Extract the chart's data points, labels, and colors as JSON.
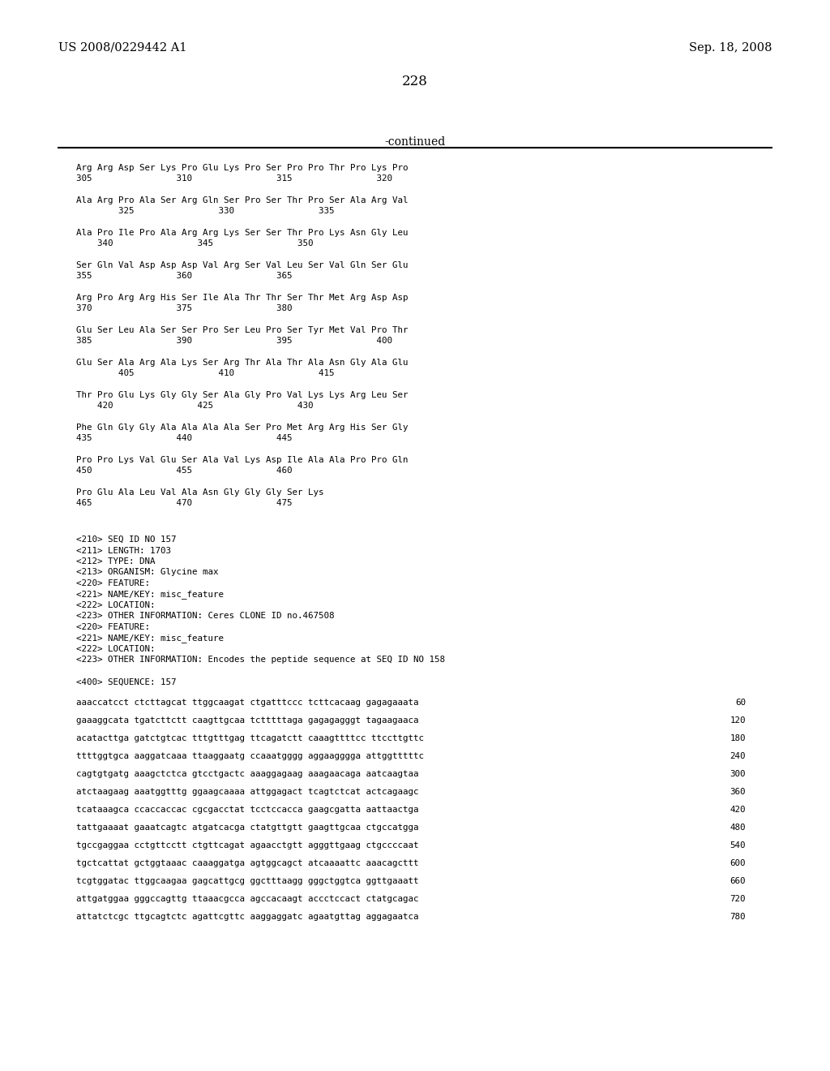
{
  "header_left": "US 2008/0229442 A1",
  "header_right": "Sep. 18, 2008",
  "page_number": "228",
  "continued_label": "-continued",
  "background_color": "#ffffff",
  "text_color": "#000000",
  "font_size_header": 10.5,
  "font_size_body": 8.5,
  "font_size_page": 12,
  "font_size_continued": 10,
  "peptide_lines": [
    [
      "Arg Arg Asp Ser Lys Pro Glu Lys Pro Ser Pro Pro Thr Pro Lys Pro",
      "305                310                315                320"
    ],
    [
      "Ala Arg Pro Ala Ser Arg Gln Ser Pro Ser Thr Pro Ser Ala Arg Val",
      "        325                330                335"
    ],
    [
      "Ala Pro Ile Pro Ala Arg Arg Lys Ser Ser Thr Pro Lys Asn Gly Leu",
      "    340                345                350"
    ],
    [
      "Ser Gln Val Asp Asp Asp Val Arg Ser Val Leu Ser Val Gln Ser Glu",
      "355                360                365"
    ],
    [
      "Arg Pro Arg Arg His Ser Ile Ala Thr Thr Ser Thr Met Arg Asp Asp",
      "370                375                380"
    ],
    [
      "Glu Ser Leu Ala Ser Ser Pro Ser Leu Pro Ser Tyr Met Val Pro Thr",
      "385                390                395                400"
    ],
    [
      "Glu Ser Ala Arg Ala Lys Ser Arg Thr Ala Thr Ala Asn Gly Ala Glu",
      "        405                410                415"
    ],
    [
      "Thr Pro Glu Lys Gly Gly Ser Ala Gly Pro Val Lys Lys Arg Leu Ser",
      "    420                425                430"
    ],
    [
      "Phe Gln Gly Gly Ala Ala Ala Ala Ser Pro Met Arg Arg His Ser Gly",
      "435                440                445"
    ],
    [
      "Pro Pro Lys Val Glu Ser Ala Val Lys Asp Ile Ala Ala Pro Pro Gln",
      "450                455                460"
    ],
    [
      "Pro Glu Ala Leu Val Ala Asn Gly Gly Gly Ser Lys",
      "465                470                475"
    ]
  ],
  "metadata_lines": [
    "<210> SEQ ID NO 157",
    "<211> LENGTH: 1703",
    "<212> TYPE: DNA",
    "<213> ORGANISM: Glycine max",
    "<220> FEATURE:",
    "<221> NAME/KEY: misc_feature",
    "<222> LOCATION:",
    "<223> OTHER INFORMATION: Ceres CLONE ID no.467508",
    "<220> FEATURE:",
    "<221> NAME/KEY: misc_feature",
    "<222> LOCATION:",
    "<223> OTHER INFORMATION: Encodes the peptide sequence at SEQ ID NO 158",
    "",
    "<400> SEQUENCE: 157"
  ],
  "sequence_lines": [
    [
      "aaaccatcct ctcttagcat ttggcaagat ctgatttccc tcttcacaag gagagaaata",
      "60"
    ],
    [
      "gaaaggcata tgatcttctt caagttgcaa tctttttaga gagagagggt tagaagaaca",
      "120"
    ],
    [
      "acatacttga gatctgtcac tttgtttgag ttcagatctt caaagttttcc ttccttgttc",
      "180"
    ],
    [
      "ttttggtgca aaggatcaaa ttaaggaatg ccaaatgggg aggaagggga attggtttttc",
      "240"
    ],
    [
      "cagtgtgatg aaagctctca gtcctgactc aaaggagaag aaagaacaga aatcaagtaa",
      "300"
    ],
    [
      "atctaagaag aaatggtttg ggaagcaaaa attggagact tcagtctcat actcagaagc",
      "360"
    ],
    [
      "tcataaagca ccaccaccac cgcgacctat tcctccacca gaagcgatta aattaactga",
      "420"
    ],
    [
      "tattgaaaat gaaatcagtc atgatcacga ctatgttgtt gaagttgcaa ctgccatgga",
      "480"
    ],
    [
      "tgccgaggaa cctgttcctt ctgttcagat agaacctgtt agggttgaag ctgccccaat",
      "540"
    ],
    [
      "tgctcattat gctggtaaac caaaggatga agtggcagct atcaaaattc aaacagcttt",
      "600"
    ],
    [
      "tcgtggatac ttggcaagaa gagcattgcg ggctttaagg gggctggtca ggttgaaatt",
      "660"
    ],
    [
      "attgatggaa gggccagttg ttaaacgcca agccacaagt accctccact ctatgcagac",
      "720"
    ],
    [
      "attatctcgc ttgcagtctc agattcgttc aaggaggatc agaatgttag aggagaatca",
      "780"
    ]
  ]
}
